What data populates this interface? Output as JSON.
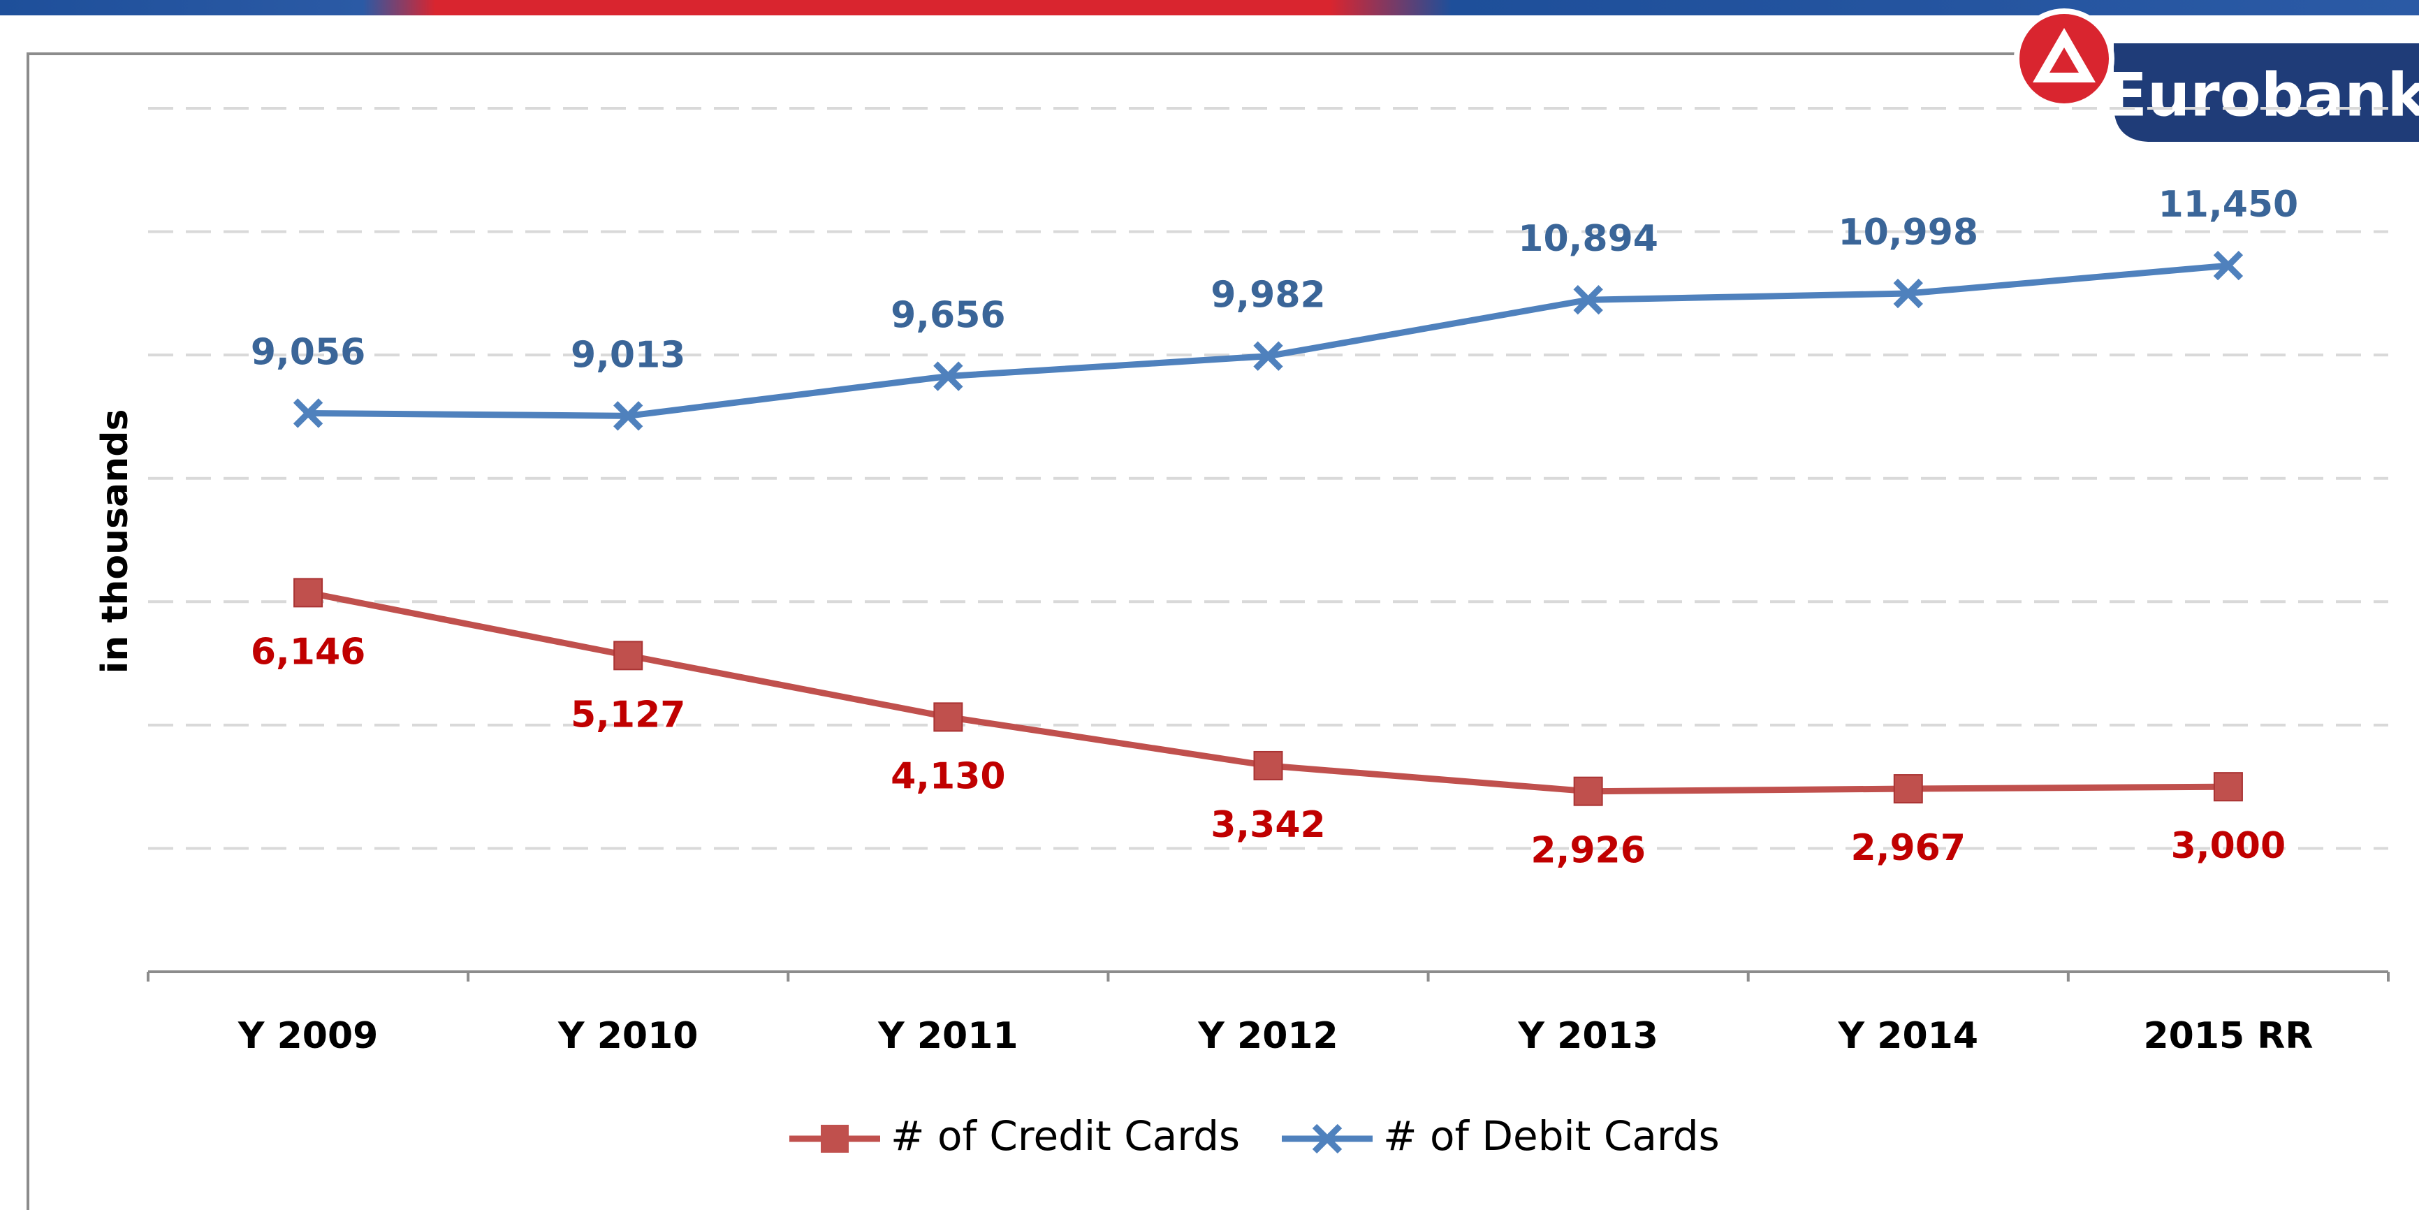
{
  "logo": "Eurobank",
  "chart_data": {
    "type": "line",
    "y_label": "in thousands",
    "categories": [
      "Y 2009",
      "Y 2010",
      "Y 2011",
      "Y 2012",
      "Y 2013",
      "Y 2014",
      "2015 RR"
    ],
    "series": [
      {
        "name": "# of Credit Cards",
        "color": "#c0504d",
        "label_color": "#c00000",
        "marker": "square",
        "values": [
          6146,
          5127,
          4130,
          3342,
          2926,
          2967,
          3000
        ],
        "value_labels": [
          "6,146",
          "5,127",
          "4,130",
          "3,342",
          "2,926",
          "2,967",
          "3,000"
        ]
      },
      {
        "name": "# of Debit Cards",
        "color": "#4f81bd",
        "label_color": "#3a6598",
        "marker": "x",
        "values": [
          9056,
          9013,
          9656,
          9982,
          10894,
          10998,
          11450
        ],
        "value_labels": [
          "9,056",
          "9,013",
          "9,656",
          "9,982",
          "10,894",
          "10,998",
          "11,450"
        ]
      }
    ],
    "ylim": [
      0,
      14000
    ],
    "yticks": [
      2000,
      4000,
      6000,
      8000,
      10000,
      12000,
      14000
    ],
    "grid": true,
    "legend": "bottom"
  }
}
